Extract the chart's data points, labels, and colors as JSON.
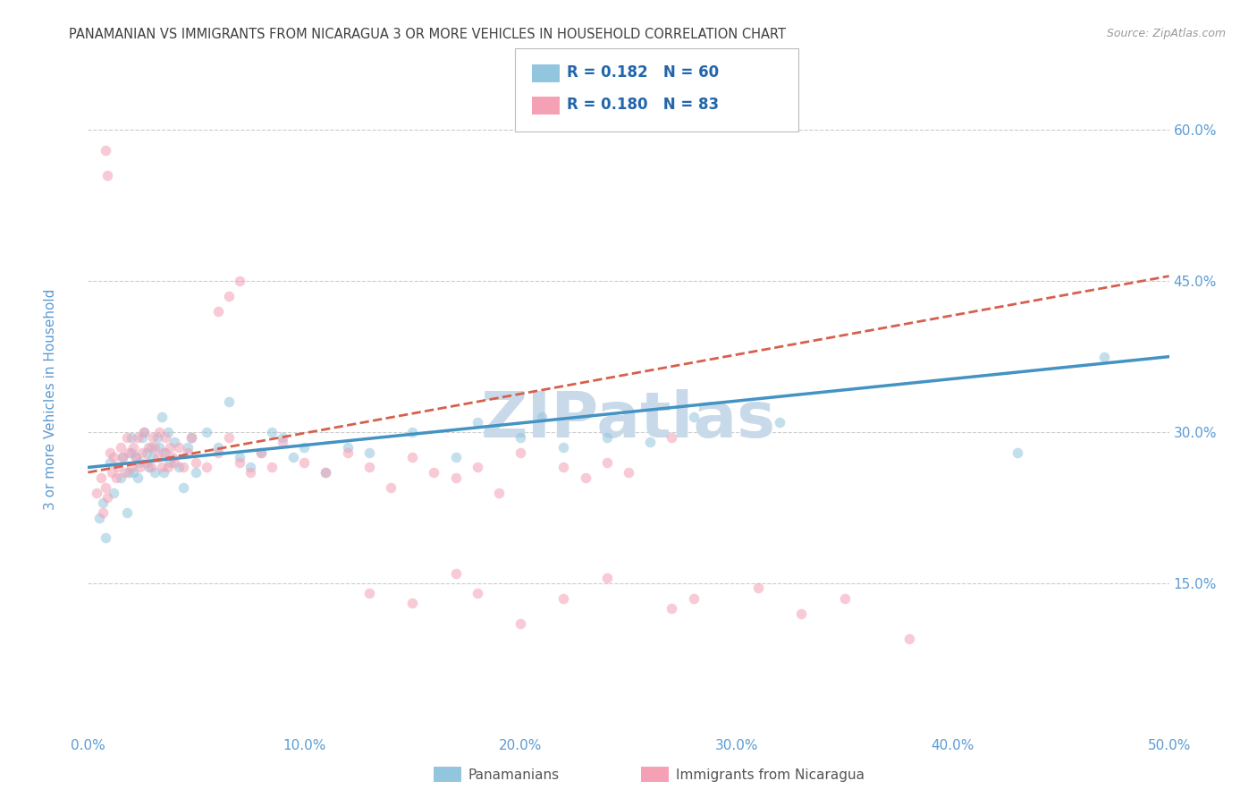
{
  "title": "PANAMANIAN VS IMMIGRANTS FROM NICARAGUA 3 OR MORE VEHICLES IN HOUSEHOLD CORRELATION CHART",
  "source": "Source: ZipAtlas.com",
  "ylabel": "3 or more Vehicles in Household",
  "xlim": [
    0.0,
    0.5
  ],
  "ylim": [
    0.0,
    0.65
  ],
  "xticks": [
    0.0,
    0.1,
    0.2,
    0.3,
    0.4,
    0.5
  ],
  "yticks": [
    0.15,
    0.3,
    0.45,
    0.6
  ],
  "ytick_labels": [
    "15.0%",
    "30.0%",
    "45.0%",
    "60.0%"
  ],
  "xtick_labels": [
    "0.0%",
    "10.0%",
    "20.0%",
    "30.0%",
    "40.0%",
    "50.0%"
  ],
  "legend_r1": "R = 0.182",
  "legend_n1": "N = 60",
  "legend_r2": "R = 0.180",
  "legend_n2": "N = 83",
  "legend_label1": "Panamanians",
  "legend_label2": "Immigrants from Nicaragua",
  "blue_color": "#92c5de",
  "pink_color": "#f4a0b5",
  "blue_line_color": "#4393c3",
  "pink_line_color": "#d6604d",
  "marker_size": 70,
  "marker_alpha": 0.55,
  "background_color": "#ffffff",
  "grid_color": "#cccccc",
  "title_color": "#404040",
  "axis_label_color": "#5b9bd5",
  "tick_label_color": "#5b9bd5",
  "legend_text_color": "#2166ac",
  "blue_points_x": [
    0.005,
    0.007,
    0.008,
    0.01,
    0.012,
    0.015,
    0.016,
    0.018,
    0.019,
    0.02,
    0.02,
    0.021,
    0.022,
    0.023,
    0.024,
    0.025,
    0.026,
    0.027,
    0.028,
    0.029,
    0.03,
    0.031,
    0.032,
    0.033,
    0.034,
    0.035,
    0.036,
    0.037,
    0.038,
    0.04,
    0.042,
    0.044,
    0.046,
    0.048,
    0.05,
    0.055,
    0.06,
    0.065,
    0.07,
    0.075,
    0.08,
    0.085,
    0.09,
    0.095,
    0.1,
    0.11,
    0.12,
    0.13,
    0.15,
    0.17,
    0.18,
    0.2,
    0.21,
    0.22,
    0.24,
    0.26,
    0.28,
    0.32,
    0.43,
    0.47
  ],
  "blue_points_y": [
    0.215,
    0.23,
    0.195,
    0.27,
    0.24,
    0.255,
    0.275,
    0.22,
    0.26,
    0.28,
    0.295,
    0.26,
    0.275,
    0.255,
    0.27,
    0.295,
    0.3,
    0.28,
    0.265,
    0.285,
    0.275,
    0.26,
    0.295,
    0.285,
    0.315,
    0.26,
    0.28,
    0.3,
    0.27,
    0.29,
    0.265,
    0.245,
    0.285,
    0.295,
    0.26,
    0.3,
    0.285,
    0.33,
    0.275,
    0.265,
    0.28,
    0.3,
    0.295,
    0.275,
    0.285,
    0.26,
    0.285,
    0.28,
    0.3,
    0.275,
    0.31,
    0.295,
    0.315,
    0.285,
    0.295,
    0.29,
    0.315,
    0.31,
    0.28,
    0.375
  ],
  "pink_points_x": [
    0.004,
    0.006,
    0.007,
    0.008,
    0.009,
    0.01,
    0.011,
    0.012,
    0.013,
    0.014,
    0.015,
    0.016,
    0.017,
    0.018,
    0.019,
    0.02,
    0.021,
    0.022,
    0.023,
    0.024,
    0.025,
    0.026,
    0.027,
    0.028,
    0.029,
    0.03,
    0.031,
    0.032,
    0.033,
    0.034,
    0.035,
    0.036,
    0.037,
    0.038,
    0.039,
    0.04,
    0.042,
    0.044,
    0.046,
    0.048,
    0.05,
    0.055,
    0.06,
    0.065,
    0.07,
    0.075,
    0.08,
    0.085,
    0.09,
    0.1,
    0.11,
    0.12,
    0.13,
    0.14,
    0.15,
    0.16,
    0.17,
    0.18,
    0.19,
    0.2,
    0.22,
    0.23,
    0.24,
    0.25,
    0.27,
    0.06,
    0.065,
    0.008,
    0.009,
    0.07,
    0.13,
    0.15,
    0.18,
    0.2,
    0.22,
    0.17,
    0.24,
    0.27,
    0.28,
    0.31,
    0.33,
    0.35,
    0.38
  ],
  "pink_points_y": [
    0.24,
    0.255,
    0.22,
    0.245,
    0.235,
    0.28,
    0.26,
    0.275,
    0.255,
    0.265,
    0.285,
    0.275,
    0.26,
    0.295,
    0.28,
    0.265,
    0.285,
    0.275,
    0.295,
    0.265,
    0.28,
    0.3,
    0.27,
    0.285,
    0.265,
    0.295,
    0.285,
    0.275,
    0.3,
    0.265,
    0.28,
    0.295,
    0.265,
    0.285,
    0.275,
    0.27,
    0.285,
    0.265,
    0.28,
    0.295,
    0.27,
    0.265,
    0.28,
    0.295,
    0.27,
    0.26,
    0.28,
    0.265,
    0.29,
    0.27,
    0.26,
    0.28,
    0.265,
    0.245,
    0.275,
    0.26,
    0.255,
    0.265,
    0.24,
    0.28,
    0.265,
    0.255,
    0.27,
    0.26,
    0.295,
    0.42,
    0.435,
    0.58,
    0.555,
    0.45,
    0.14,
    0.13,
    0.14,
    0.11,
    0.135,
    0.16,
    0.155,
    0.125,
    0.135,
    0.145,
    0.12,
    0.135,
    0.095
  ],
  "blue_trend_x": [
    0.0,
    0.5
  ],
  "blue_trend_y": [
    0.265,
    0.375
  ],
  "pink_trend_x": [
    0.0,
    0.5
  ],
  "pink_trend_y": [
    0.26,
    0.455
  ],
  "watermark": "ZIPatlas",
  "watermark_color": "#c8daea",
  "watermark_fontsize": 52
}
